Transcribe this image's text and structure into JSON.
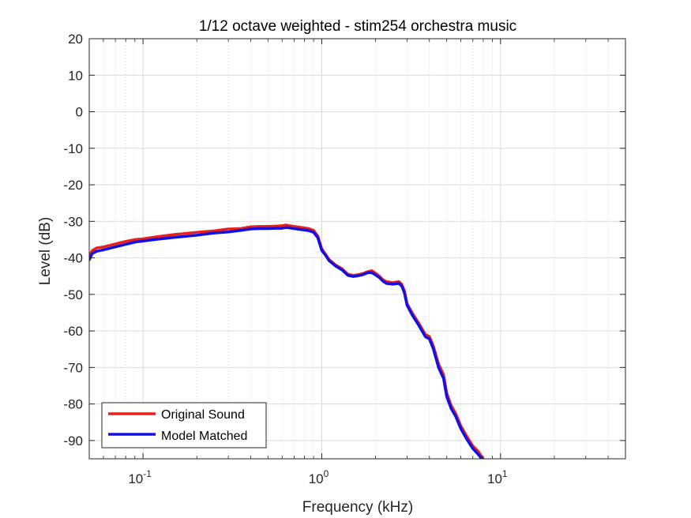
{
  "chart_data": {
    "type": "line",
    "title": "1/12 octave weighted - stim254 orchestra music",
    "xlabel": "Frequency (kHz)",
    "ylabel": "Level (dB)",
    "xscale": "log",
    "xlim": [
      0.05,
      50
    ],
    "ylim": [
      -95,
      20
    ],
    "grid": true,
    "minor_grid": true,
    "legend_location": "bottom-left",
    "x_ticks": [
      {
        "value": 0.1,
        "base": "10",
        "exp": "-1"
      },
      {
        "value": 1,
        "base": "10",
        "exp": "0"
      },
      {
        "value": 10,
        "base": "10",
        "exp": "1"
      }
    ],
    "y_ticks": [
      20,
      10,
      0,
      -10,
      -20,
      -30,
      -40,
      -50,
      -60,
      -70,
      -80,
      -90
    ],
    "series": [
      {
        "name": "Original Sound",
        "color": "#e8201c",
        "x": [
          0.05,
          0.052,
          0.055,
          0.06,
          0.07,
          0.08,
          0.09,
          0.1,
          0.12,
          0.15,
          0.2,
          0.25,
          0.3,
          0.35,
          0.4,
          0.45,
          0.5,
          0.55,
          0.6,
          0.63,
          0.66,
          0.7,
          0.75,
          0.8,
          0.85,
          0.9,
          0.95,
          1.0,
          1.05,
          1.1,
          1.2,
          1.3,
          1.4,
          1.5,
          1.6,
          1.7,
          1.8,
          1.9,
          2.0,
          2.1,
          2.2,
          2.3,
          2.5,
          2.7,
          2.8,
          2.9,
          3.0,
          3.2,
          3.5,
          3.8,
          4.0,
          4.2,
          4.5,
          4.8,
          5.0,
          5.3,
          5.6,
          6.0,
          6.5,
          7.0,
          7.5,
          8.0,
          8.3
        ],
        "values": [
          -39.5,
          -38.0,
          -37.3,
          -37.0,
          -36.2,
          -35.5,
          -35.0,
          -34.8,
          -34.2,
          -33.6,
          -33.0,
          -32.6,
          -32.1,
          -32.0,
          -31.5,
          -31.4,
          -31.4,
          -31.3,
          -31.2,
          -31.0,
          -31.2,
          -31.4,
          -31.6,
          -31.8,
          -32.0,
          -32.5,
          -34.0,
          -37.5,
          -39.0,
          -40.5,
          -42.0,
          -43.0,
          -44.5,
          -44.8,
          -44.6,
          -44.3,
          -43.8,
          -43.5,
          -44.2,
          -45.0,
          -46.0,
          -46.5,
          -46.8,
          -46.5,
          -47.2,
          -49.0,
          -52.5,
          -55.0,
          -58.0,
          -61.0,
          -61.5,
          -64.0,
          -69.0,
          -72.0,
          -77.0,
          -80.5,
          -82.5,
          -86.0,
          -89.0,
          -91.5,
          -93.0,
          -95.0,
          -96.0
        ]
      },
      {
        "name": "Model Matched",
        "color": "#1010e6",
        "x": [
          0.05,
          0.052,
          0.055,
          0.06,
          0.07,
          0.08,
          0.09,
          0.1,
          0.12,
          0.15,
          0.2,
          0.25,
          0.3,
          0.35,
          0.4,
          0.45,
          0.5,
          0.55,
          0.6,
          0.63,
          0.66,
          0.7,
          0.75,
          0.8,
          0.85,
          0.9,
          0.95,
          1.0,
          1.05,
          1.1,
          1.2,
          1.3,
          1.4,
          1.5,
          1.6,
          1.7,
          1.8,
          1.9,
          2.0,
          2.1,
          2.2,
          2.3,
          2.5,
          2.7,
          2.8,
          2.9,
          3.0,
          3.2,
          3.5,
          3.8,
          4.0,
          4.2,
          4.5,
          4.8,
          5.0,
          5.3,
          5.6,
          6.0,
          6.5,
          7.0,
          7.5,
          8.0,
          8.3
        ],
        "values": [
          -40.5,
          -38.8,
          -38.2,
          -37.8,
          -37.0,
          -36.3,
          -35.7,
          -35.4,
          -34.9,
          -34.4,
          -33.8,
          -33.2,
          -32.9,
          -32.5,
          -32.1,
          -32.0,
          -32.0,
          -31.9,
          -31.9,
          -31.7,
          -31.8,
          -32.0,
          -32.2,
          -32.4,
          -32.6,
          -33.0,
          -34.5,
          -38.0,
          -39.3,
          -40.8,
          -42.3,
          -43.3,
          -44.8,
          -45.1,
          -44.9,
          -44.6,
          -44.1,
          -44.0,
          -44.7,
          -45.4,
          -46.4,
          -47.0,
          -47.2,
          -47.0,
          -47.7,
          -49.6,
          -53.0,
          -55.6,
          -58.6,
          -61.6,
          -62.2,
          -64.8,
          -70.0,
          -73.0,
          -78.0,
          -81.3,
          -83.3,
          -86.8,
          -89.8,
          -92.2,
          -93.8,
          -95.5,
          -96.5
        ]
      }
    ]
  }
}
